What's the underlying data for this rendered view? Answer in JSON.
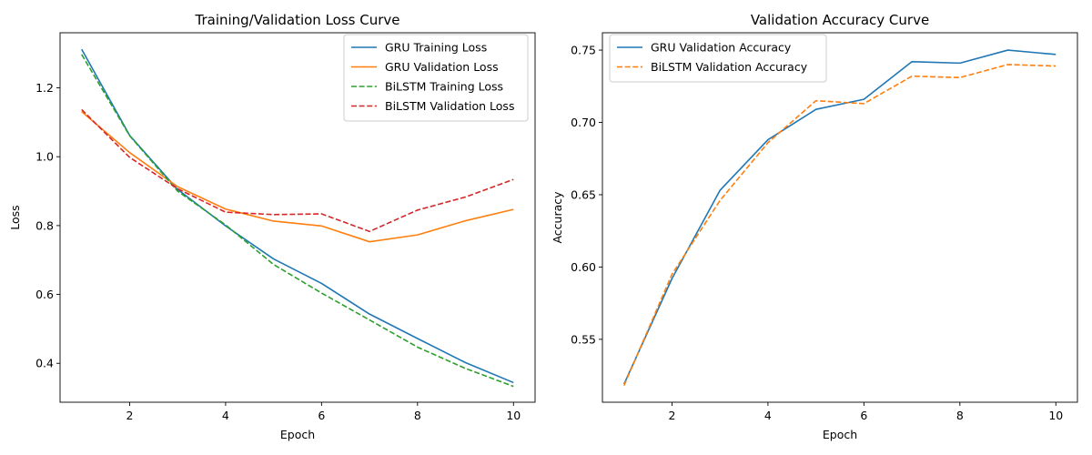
{
  "chart_data": [
    {
      "type": "line",
      "title": "Training/Validation Loss Curve",
      "xlabel": "Epoch",
      "ylabel": "Loss",
      "x": [
        1,
        2,
        3,
        4,
        5,
        6,
        7,
        8,
        9,
        10
      ],
      "xlim": [
        0.55,
        10.45
      ],
      "ylim": [
        0.287,
        1.36
      ],
      "xticks": [
        2,
        4,
        6,
        8,
        10
      ],
      "yticks": [
        0.4,
        0.6,
        0.8,
        1.0,
        1.2
      ],
      "ytick_labels": [
        "0.4",
        "0.6",
        "0.8",
        "1.0",
        "1.2"
      ],
      "legend_position": "upper right",
      "grid": false,
      "series": [
        {
          "name": "GRU Training Loss",
          "color": "#1f77b4",
          "style": "solid",
          "values": [
            1.312,
            1.062,
            0.905,
            0.799,
            0.703,
            0.632,
            0.543,
            0.472,
            0.402,
            0.344
          ]
        },
        {
          "name": "GRU Validation Loss",
          "color": "#ff7f0e",
          "style": "solid",
          "values": [
            1.131,
            1.012,
            0.913,
            0.848,
            0.813,
            0.799,
            0.753,
            0.773,
            0.814,
            0.847
          ]
        },
        {
          "name": "BiLSTM Training Loss",
          "color": "#2ca02c",
          "style": "dashed",
          "values": [
            1.297,
            1.061,
            0.9,
            0.802,
            0.687,
            0.604,
            0.526,
            0.447,
            0.385,
            0.333
          ]
        },
        {
          "name": "BiLSTM Validation Loss",
          "color": "#d62728",
          "style": "dashed",
          "values": [
            1.137,
            0.998,
            0.907,
            0.839,
            0.832,
            0.834,
            0.783,
            0.845,
            0.883,
            0.934
          ]
        }
      ]
    },
    {
      "type": "line",
      "title": "Validation Accuracy Curve",
      "xlabel": "Epoch",
      "ylabel": "Accuracy",
      "x": [
        1,
        2,
        3,
        4,
        5,
        6,
        7,
        8,
        9,
        10
      ],
      "xlim": [
        0.55,
        10.45
      ],
      "ylim": [
        0.5065,
        0.762
      ],
      "xticks": [
        2,
        4,
        6,
        8,
        10
      ],
      "yticks": [
        0.55,
        0.6,
        0.65,
        0.7,
        0.75
      ],
      "ytick_labels": [
        "0.55",
        "0.60",
        "0.65",
        "0.70",
        "0.75"
      ],
      "legend_position": "upper left",
      "grid": false,
      "series": [
        {
          "name": "GRU Validation Accuracy",
          "color": "#1f77b4",
          "style": "solid",
          "values": [
            0.519,
            0.592,
            0.653,
            0.688,
            0.709,
            0.716,
            0.742,
            0.741,
            0.75,
            0.747
          ]
        },
        {
          "name": "BiLSTM Validation Accuracy",
          "color": "#ff7f0e",
          "style": "dashed",
          "values": [
            0.518,
            0.595,
            0.646,
            0.686,
            0.715,
            0.713,
            0.732,
            0.731,
            0.74,
            0.739
          ]
        }
      ]
    }
  ]
}
